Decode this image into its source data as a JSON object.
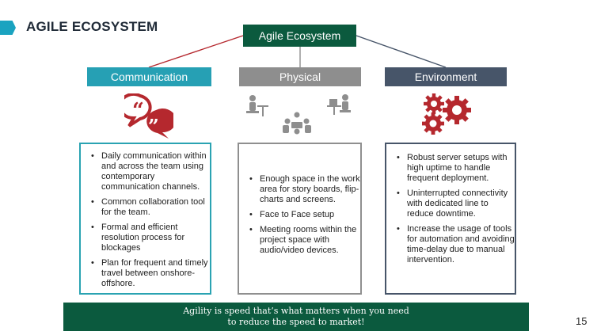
{
  "title": "AGILE ECOSYSTEM",
  "center": "Agile Ecosystem",
  "categories": {
    "communication": "Communication",
    "physical": "Physical",
    "environment": "Environment"
  },
  "icons": {
    "communication": "speech-bubbles-quote-icon",
    "physical": "people-at-workstations-icon",
    "environment": "gears-icon"
  },
  "colors": {
    "green": "#0b5a3e",
    "teal": "#26a0b4",
    "gray": "#8e8e8e",
    "slate": "#475569",
    "red": "#b5282e"
  },
  "communication_items": [
    "Daily communication within and across the team using contemporary communication channels.",
    "Common collaboration tool for the team.",
    "Formal and efficient resolution process for blockages",
    "Plan for frequent and timely travel between onshore-offshore."
  ],
  "physical_items": [
    "Enough  space in the work area for  story boards, flip-charts and screens.",
    "Face to Face setup",
    "Meeting rooms within the project space with audio/video  devices."
  ],
  "environment_items": [
    "Robust server setups with high uptime to handle frequent deployment.",
    "Uninterrupted connectivity with dedicated line to reduce downtime.",
    "Increase the usage of tools for automation and avoiding time-delay due to manual intervention."
  ],
  "banner": {
    "line1": "Agility is speed that’s what matters when you need",
    "line2": "to reduce the speed to market!"
  },
  "page_number": "15"
}
